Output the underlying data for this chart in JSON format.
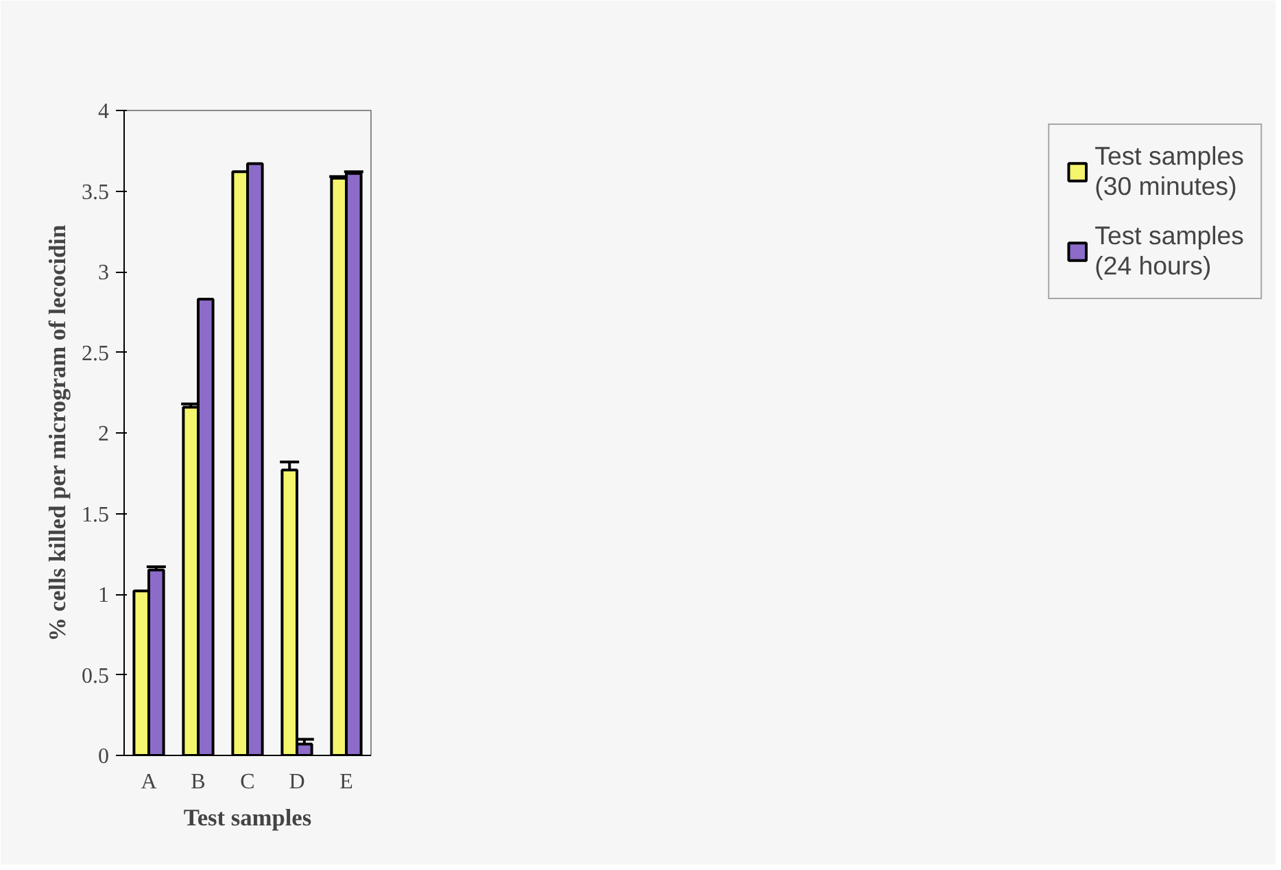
{
  "chart_data": {
    "type": "bar",
    "xlabel": "Test samples",
    "ylabel": "% cells killed per microgram of lecocidin",
    "categories": [
      "A",
      "B",
      "C",
      "D",
      "E"
    ],
    "series": [
      {
        "name": "Test samples (30 minutes)",
        "color": "#f5f56e",
        "values": [
          1.02,
          2.16,
          3.62,
          1.77,
          3.58
        ],
        "errors": [
          null,
          0.02,
          null,
          0.05,
          0.01
        ]
      },
      {
        "name": "Test samples (24 hours)",
        "color": "#8c6cc8",
        "values": [
          1.15,
          2.83,
          3.67,
          0.07,
          3.61
        ],
        "errors": [
          0.02,
          null,
          null,
          0.03,
          0.01
        ]
      }
    ],
    "ylim": [
      0,
      4
    ],
    "yticks": [
      0,
      0.5,
      1,
      1.5,
      2,
      2.5,
      3,
      3.5,
      4
    ],
    "grid": false,
    "legend": "right"
  }
}
